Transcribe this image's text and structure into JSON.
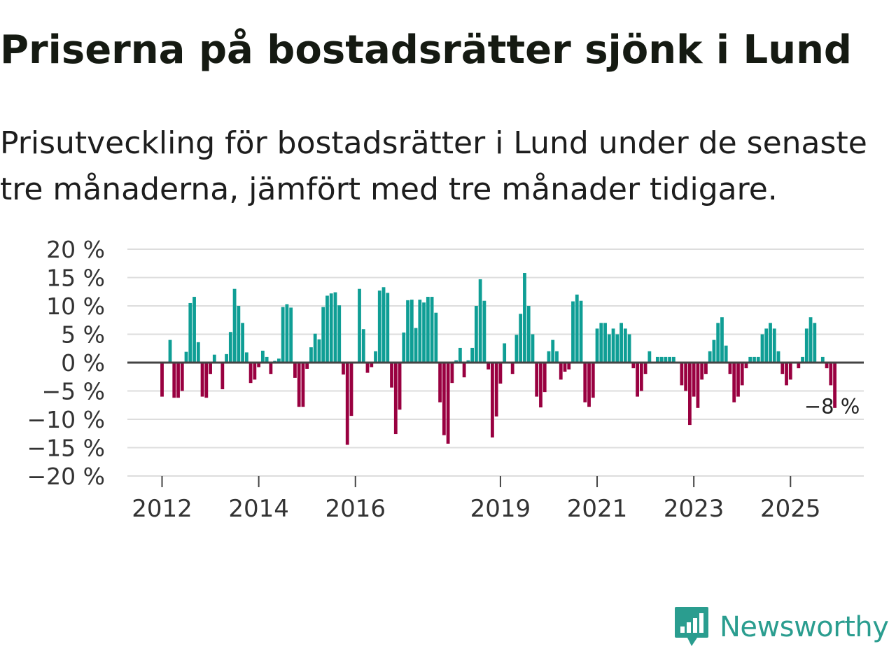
{
  "title": "Priserna på bostadsrätter sjönk i Lund",
  "subtitle": "Prisutveckling för bostadsrätter i Lund under de senaste tre månaderna, jämfört med tre månader tidigare.",
  "logo": {
    "text": "Newsworthy",
    "icon": "newsworthy-bar-chart-icon"
  },
  "colors": {
    "positive": "#0f9e95",
    "negative": "#990040",
    "grid": "#dddddd",
    "zero_line": "#444444",
    "text": "#333333"
  },
  "chart_data": {
    "type": "bar",
    "x_start": "2012-01",
    "interval": "month",
    "y_unit": "%",
    "ylim": [
      -20,
      20
    ],
    "yticks": [
      "20 %",
      "15 %",
      "10 %",
      "5 %",
      "0 %",
      "−5 %",
      "−10 %",
      "−15 %",
      "−20 %"
    ],
    "ytick_values": [
      20,
      15,
      10,
      5,
      0,
      -5,
      -10,
      -15,
      -20
    ],
    "xticks": [
      "2012",
      "2014",
      "2016",
      "2019",
      "2021",
      "2023",
      "2025"
    ],
    "xtick_months": [
      0,
      24,
      48,
      84,
      108,
      132,
      156
    ],
    "grid": true,
    "legend": "none",
    "annotation": {
      "label": "−8 %",
      "month_index": 166
    },
    "values": [
      -6,
      0,
      4,
      -6.2,
      -6.2,
      -5,
      1.9,
      10.5,
      11.6,
      3.6,
      -6,
      -6.2,
      -2,
      1.4,
      0,
      -4.7,
      1.5,
      5.4,
      13,
      10,
      7,
      1.8,
      -3.6,
      -3,
      -0.8,
      2.1,
      1,
      -2,
      0.3,
      0.7,
      9.8,
      10.3,
      9.7,
      -2.7,
      -7.8,
      -7.8,
      -1.1,
      2.7,
      5.1,
      4.1,
      9.8,
      11.8,
      12.2,
      12.4,
      10.1,
      -2.1,
      -14.5,
      -9.4,
      0,
      13,
      5.9,
      -1.8,
      -0.8,
      2,
      12.7,
      13.3,
      12.3,
      -4.4,
      -12.6,
      -8.3,
      5.3,
      11,
      11.1,
      6.1,
      11.1,
      10.6,
      11.6,
      11.6,
      8.8,
      -7,
      -12.8,
      -14.3,
      -3.6,
      0.4,
      2.6,
      -2.6,
      0.4,
      2.6,
      10,
      14.7,
      10.9,
      -1.2,
      -13.2,
      -9.5,
      -3.7,
      3.4,
      0,
      -2,
      4.9,
      8.6,
      15.8,
      10,
      5,
      -6,
      -7.9,
      -5.2,
      2,
      4,
      2,
      -3,
      -1.6,
      -1.2,
      10.8,
      12,
      10.9,
      -7,
      -7.8,
      -6.2,
      6,
      7,
      7,
      5,
      6,
      5,
      7,
      6,
      5,
      -1,
      -6,
      -5,
      -2,
      2,
      0,
      1,
      1,
      1,
      1,
      1,
      0,
      -4,
      -5,
      -11,
      -6,
      -8,
      -3,
      -2,
      2,
      4,
      7,
      8,
      3,
      -2,
      -7,
      -6,
      -4,
      -1,
      1,
      1,
      1,
      5,
      6,
      7,
      6,
      2,
      -2,
      -4,
      -3,
      0,
      -1,
      1,
      6,
      8,
      7,
      0,
      1,
      -1,
      -4,
      -8
    ]
  }
}
